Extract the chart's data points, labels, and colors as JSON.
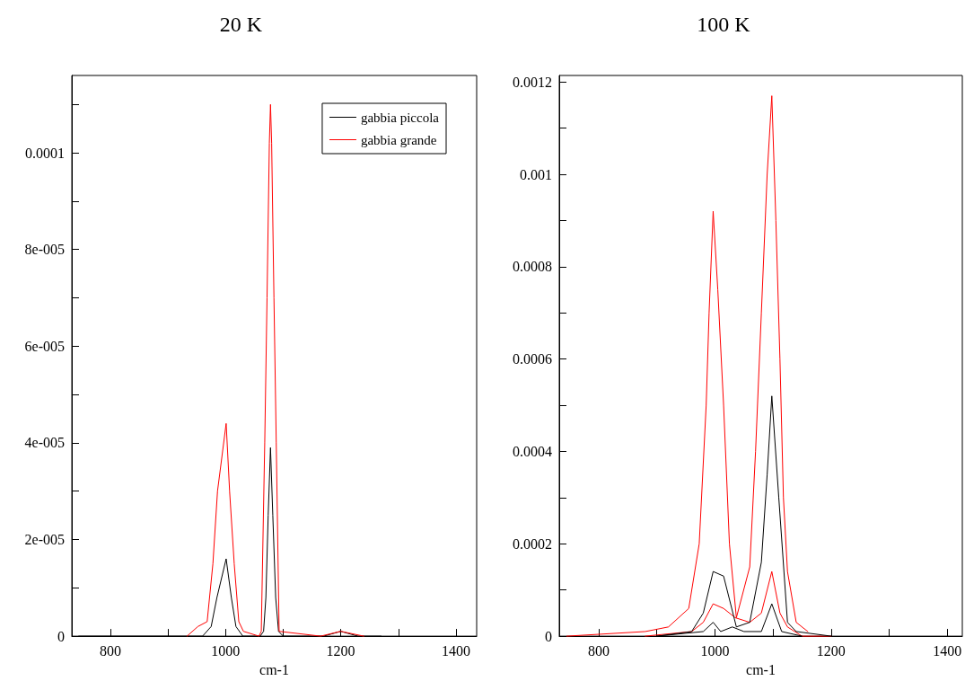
{
  "chart_data": [
    {
      "type": "line",
      "title": "20 K",
      "xlabel": "cm-1",
      "xlim": [
        733,
        1436
      ],
      "xticks": [
        800,
        {
          "value": 900,
          "label": null
        },
        1000,
        {
          "value": 1100,
          "label": null
        },
        1200,
        {
          "value": 1300,
          "label": null
        },
        1400
      ],
      "ylim": [
        0,
        0.000116
      ],
      "yticks": [
        0,
        {
          "value": 1e-05,
          "label": null
        },
        {
          "value": 2e-05,
          "label": "2e-005"
        },
        {
          "value": 3e-05,
          "label": null
        },
        {
          "value": 4e-05,
          "label": "4e-005"
        },
        {
          "value": 5e-05,
          "label": null
        },
        {
          "value": 6e-05,
          "label": "6e-005"
        },
        {
          "value": 7e-05,
          "label": null
        },
        {
          "value": 8e-05,
          "label": "8e-005"
        },
        {
          "value": 9e-05,
          "label": null
        },
        0.0001,
        {
          "value": 0.00011,
          "label": null
        }
      ],
      "grid": false,
      "legend": "top right",
      "marker": "none",
      "series": [
        {
          "name": "gabbia piccola",
          "color": "#000000",
          "x": [
            745,
            900,
            950,
            960,
            975,
            985,
            1001,
            1010,
            1018,
            1030,
            1060,
            1066,
            1070,
            1074,
            1078,
            1082,
            1087,
            1092,
            1100,
            1150,
            1170,
            1200,
            1230,
            1270
          ],
          "values": [
            0,
            0,
            0,
            0,
            2e-06,
            8e-06,
            1.6e-05,
            8e-06,
            2e-06,
            0,
            0,
            1e-06,
            8e-06,
            2.5e-05,
            3.9e-05,
            2.5e-05,
            8e-06,
            1e-06,
            0,
            0,
            0,
            1e-06,
            0,
            0
          ]
        },
        {
          "name": "gabbia grande",
          "color": "#ff0000",
          "x": [
            933,
            952,
            968,
            978,
            986,
            1001,
            1007,
            1015,
            1023,
            1031,
            1058,
            1062,
            1068,
            1072,
            1076,
            1078,
            1080,
            1084,
            1088,
            1093,
            1165,
            1200,
            1240
          ],
          "values": [
            0,
            2e-06,
            3e-06,
            1.5e-05,
            3e-05,
            4.4e-05,
            3e-05,
            1.5e-05,
            3e-06,
            1e-06,
            0,
            1e-06,
            4e-05,
            7e-05,
            0.000102,
            0.00011,
            0.000102,
            7e-05,
            4e-05,
            1e-06,
            0,
            1e-06,
            0
          ]
        }
      ]
    },
    {
      "type": "line",
      "title": "100 K",
      "xlabel": "cm-1",
      "xlim": [
        732,
        1426
      ],
      "xticks": [
        800,
        {
          "value": 900,
          "label": null
        },
        1000,
        {
          "value": 1100,
          "label": null
        },
        1200,
        {
          "value": 1300,
          "label": null
        },
        1400
      ],
      "ylim": [
        0,
        0.001214
      ],
      "yticks": [
        0,
        {
          "value": 0.0001,
          "label": null
        },
        0.0002,
        {
          "value": 0.0003,
          "label": null
        },
        0.0004,
        {
          "value": 0.0005,
          "label": null
        },
        0.0006,
        {
          "value": 0.0007,
          "label": null
        },
        0.0008,
        {
          "value": 0.0009,
          "label": null
        },
        0.001,
        {
          "value": 0.0011,
          "label": null
        },
        0.0012
      ],
      "grid": false,
      "legend": false,
      "marker": "none",
      "series": [
        {
          "color": "#ff0000",
          "x": [
            745,
            880,
            920,
            955,
            973,
            985,
            990,
            997,
            1005,
            1015,
            1025,
            1037,
            1060,
            1070,
            1080,
            1090,
            1098,
            1105,
            1112,
            1118,
            1125,
            1140,
            1160
          ],
          "values": [
            0,
            1e-05,
            2e-05,
            6e-05,
            0.0002,
            0.0005,
            0.0007,
            0.00092,
            0.00075,
            0.0005,
            0.0002,
            4e-05,
            0.00015,
            0.0004,
            0.0007,
            0.001,
            0.00117,
            0.0009,
            0.0006,
            0.0003,
            0.00014,
            3e-05,
            1e-05
          ]
        },
        {
          "color": "#ff0000",
          "x": [
            880,
            960,
            980,
            997,
            1015,
            1035,
            1060,
            1080,
            1098,
            1112,
            1125,
            1150,
            1200
          ],
          "values": [
            0,
            1e-05,
            3e-05,
            7e-05,
            6e-05,
            4e-05,
            3e-05,
            5e-05,
            0.00014,
            5e-05,
            2e-05,
            0,
            0
          ]
        },
        {
          "color": "#000000",
          "x": [
            900,
            960,
            980,
            997,
            1015,
            1037,
            1060,
            1080,
            1090,
            1098,
            1110,
            1125,
            1140,
            1200
          ],
          "values": [
            0,
            1e-05,
            5e-05,
            0.00014,
            0.00013,
            2e-05,
            3e-05,
            0.00016,
            0.00035,
            0.00052,
            0.0003,
            3e-05,
            1e-05,
            0
          ]
        },
        {
          "color": "#000000",
          "x": [
            900,
            980,
            997,
            1010,
            1030,
            1050,
            1080,
            1098,
            1115,
            1150
          ],
          "values": [
            0,
            1e-05,
            3e-05,
            1e-05,
            2e-05,
            1e-05,
            1e-05,
            7e-05,
            1e-05,
            0
          ]
        }
      ]
    }
  ]
}
